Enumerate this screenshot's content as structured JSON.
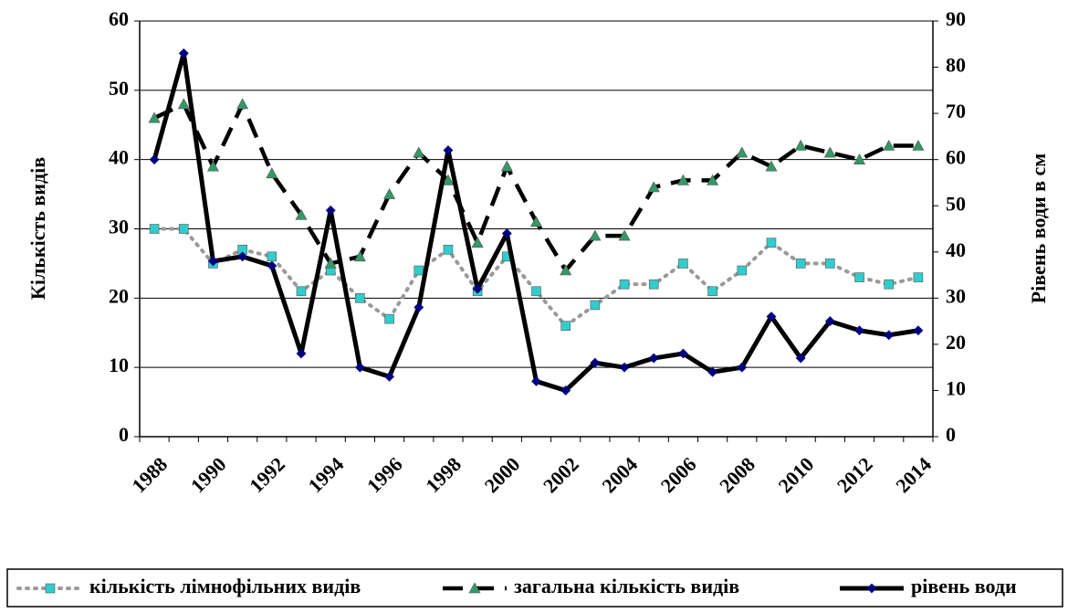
{
  "chart_data": {
    "type": "line",
    "y_label": "Кількість видів",
    "y2_label": "Рівень води в см",
    "categories": [
      "1988",
      null,
      "1990",
      null,
      "1992",
      null,
      "1994",
      null,
      "1996",
      null,
      "1998",
      null,
      "2000",
      null,
      "2002",
      null,
      "2004",
      null,
      "2006",
      null,
      "2008",
      null,
      "2010",
      null,
      "2012",
      null,
      "2014"
    ],
    "ylim": [
      0,
      60
    ],
    "yticks": [
      0,
      10,
      20,
      30,
      40,
      50,
      60
    ],
    "y2lim": [
      0,
      90
    ],
    "y2ticks": [
      0,
      10,
      20,
      30,
      40,
      50,
      60,
      70,
      80,
      90
    ],
    "grid": true,
    "series": [
      {
        "name": "кількість лімнофільних видів",
        "color": "#999999",
        "marker_color": "#33cccc",
        "marker": "square",
        "dash": "dotted",
        "values": [
          30,
          30,
          25,
          27,
          26,
          21,
          24,
          20,
          17,
          24,
          27,
          21,
          26,
          21,
          16,
          19,
          22,
          22,
          25,
          21,
          24,
          28,
          25,
          25,
          23,
          22,
          23
        ]
      },
      {
        "name": "загальна кількість видів",
        "color": "#000000",
        "marker_color": "#339966",
        "marker": "triangle",
        "dash": "dashed",
        "values": [
          46,
          48,
          39,
          48,
          38,
          32,
          25,
          26,
          35,
          41,
          37,
          28,
          39,
          31,
          24,
          29,
          29,
          36,
          37,
          37,
          41,
          39,
          42,
          41,
          40,
          42,
          42
        ]
      },
      {
        "name": "рівень води",
        "color": "#000000",
        "marker_color": "#000080",
        "marker": "diamond",
        "dash": "solid",
        "axis": "y2",
        "values": [
          60,
          83,
          38,
          39,
          37,
          18,
          49,
          15,
          13,
          28,
          62,
          32,
          44,
          12,
          10,
          16,
          15,
          17,
          18,
          14,
          15,
          26,
          17,
          25,
          23,
          22,
          23
        ]
      }
    ]
  }
}
